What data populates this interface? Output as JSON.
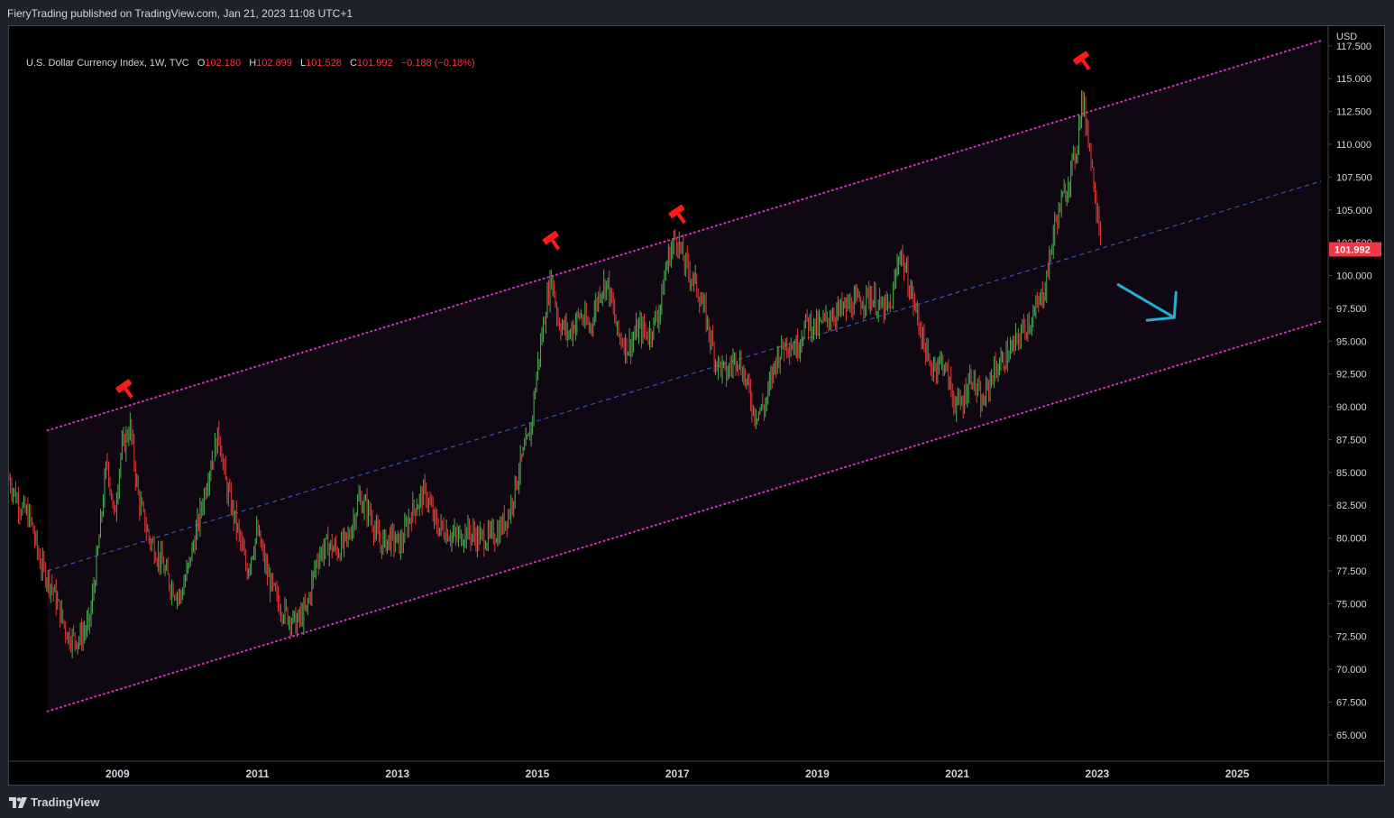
{
  "header": {
    "publish_text": "FieryTrading published on TradingView.com, Jan 21, 2023 11:08 UTC+1"
  },
  "legend": {
    "symbol": "U.S. Dollar Currency Index, 1W, TVC",
    "o_label": "O",
    "o_value": "102.180",
    "h_label": "H",
    "h_value": "102.899",
    "l_label": "L",
    "l_value": "101.528",
    "c_label": "C",
    "c_value": "101.992",
    "change": "−0.188 (−0.18%)"
  },
  "price_axis": {
    "currency": "USD",
    "last_price": "101.992",
    "hidden_tick": "102.500"
  },
  "footer": {
    "logo_text": "TradingView"
  },
  "colors": {
    "background": "#000000",
    "channel_fill": "#0f0812",
    "channel_line": "#d633c7",
    "midline": "#3a5fd6",
    "candle_up": "#4caf50",
    "candle_down": "#e53935",
    "arrow": "#22b0d8",
    "hammer": "#ff1a1a",
    "last_price_bg": "#f23645"
  },
  "icons": [
    "hammer-icon",
    "down-arrow-icon",
    "tradingview-logo-icon"
  ],
  "chart_data": {
    "type": "candlestick",
    "title": "U.S. Dollar Currency Index, 1W, TVC",
    "xlabel": "",
    "ylabel": "USD",
    "ylim": [
      63.0,
      119.0
    ],
    "xlim": [
      2007.45,
      2026.3
    ],
    "x_ticks": [
      "2009",
      "2011",
      "2013",
      "2015",
      "2017",
      "2019",
      "2021",
      "2023",
      "2025"
    ],
    "y_ticks": [
      "65.000",
      "67.500",
      "70.000",
      "72.500",
      "75.000",
      "77.500",
      "80.000",
      "82.500",
      "85.000",
      "87.500",
      "90.000",
      "92.500",
      "95.000",
      "97.500",
      "100.000",
      "105.000",
      "107.500",
      "110.000",
      "112.500",
      "115.000",
      "117.500"
    ],
    "price_path": [
      [
        2007.45,
        84.5
      ],
      [
        2007.6,
        82.5
      ],
      [
        2007.75,
        81.5
      ],
      [
        2007.9,
        78.0
      ],
      [
        2008.05,
        76.5
      ],
      [
        2008.2,
        74.0
      ],
      [
        2008.3,
        72.5
      ],
      [
        2008.45,
        72.3
      ],
      [
        2008.6,
        73.5
      ],
      [
        2008.72,
        79.0
      ],
      [
        2008.85,
        86.0
      ],
      [
        2008.95,
        81.5
      ],
      [
        2009.05,
        86.5
      ],
      [
        2009.18,
        88.5
      ],
      [
        2009.3,
        83.0
      ],
      [
        2009.45,
        80.0
      ],
      [
        2009.6,
        78.5
      ],
      [
        2009.75,
        76.5
      ],
      [
        2009.9,
        75.5
      ],
      [
        2010.0,
        77.5
      ],
      [
        2010.15,
        81.0
      ],
      [
        2010.3,
        85.0
      ],
      [
        2010.45,
        88.0
      ],
      [
        2010.55,
        84.0
      ],
      [
        2010.7,
        81.0
      ],
      [
        2010.85,
        77.5
      ],
      [
        2011.0,
        80.5
      ],
      [
        2011.15,
        77.0
      ],
      [
        2011.3,
        75.0
      ],
      [
        2011.45,
        74.0
      ],
      [
        2011.55,
        73.5
      ],
      [
        2011.7,
        74.5
      ],
      [
        2011.85,
        78.5
      ],
      [
        2012.0,
        79.5
      ],
      [
        2012.15,
        79.0
      ],
      [
        2012.3,
        80.0
      ],
      [
        2012.45,
        83.0
      ],
      [
        2012.6,
        82.0
      ],
      [
        2012.75,
        79.5
      ],
      [
        2012.9,
        80.0
      ],
      [
        2013.05,
        79.5
      ],
      [
        2013.2,
        82.0
      ],
      [
        2013.4,
        83.5
      ],
      [
        2013.55,
        81.0
      ],
      [
        2013.7,
        80.5
      ],
      [
        2013.85,
        80.0
      ],
      [
        2014.0,
        80.5
      ],
      [
        2014.15,
        80.0
      ],
      [
        2014.3,
        80.0
      ],
      [
        2014.45,
        80.5
      ],
      [
        2014.6,
        82.0
      ],
      [
        2014.75,
        85.5
      ],
      [
        2014.9,
        88.0
      ],
      [
        2015.0,
        93.0
      ],
      [
        2015.12,
        97.5
      ],
      [
        2015.2,
        100.0
      ],
      [
        2015.3,
        96.5
      ],
      [
        2015.45,
        95.5
      ],
      [
        2015.6,
        97.0
      ],
      [
        2015.75,
        96.0
      ],
      [
        2015.9,
        99.0
      ],
      [
        2016.0,
        99.5
      ],
      [
        2016.15,
        95.5
      ],
      [
        2016.3,
        94.5
      ],
      [
        2016.45,
        96.0
      ],
      [
        2016.6,
        95.5
      ],
      [
        2016.75,
        97.5
      ],
      [
        2016.85,
        101.0
      ],
      [
        2016.98,
        103.0
      ],
      [
        2017.1,
        101.0
      ],
      [
        2017.25,
        99.5
      ],
      [
        2017.4,
        97.0
      ],
      [
        2017.55,
        93.5
      ],
      [
        2017.7,
        92.5
      ],
      [
        2017.85,
        94.0
      ],
      [
        2017.98,
        92.0
      ],
      [
        2018.1,
        89.5
      ],
      [
        2018.25,
        90.0
      ],
      [
        2018.4,
        93.5
      ],
      [
        2018.55,
        95.0
      ],
      [
        2018.7,
        94.5
      ],
      [
        2018.85,
        96.5
      ],
      [
        2019.0,
        96.0
      ],
      [
        2019.2,
        97.0
      ],
      [
        2019.4,
        97.5
      ],
      [
        2019.6,
        98.0
      ],
      [
        2019.75,
        98.5
      ],
      [
        2019.9,
        97.5
      ],
      [
        2020.05,
        97.5
      ],
      [
        2020.18,
        102.0
      ],
      [
        2020.3,
        99.5
      ],
      [
        2020.45,
        96.5
      ],
      [
        2020.6,
        93.0
      ],
      [
        2020.8,
        93.5
      ],
      [
        2020.95,
        90.5
      ],
      [
        2021.05,
        90.0
      ],
      [
        2021.2,
        92.5
      ],
      [
        2021.35,
        90.0
      ],
      [
        2021.5,
        92.5
      ],
      [
        2021.65,
        93.5
      ],
      [
        2021.8,
        94.5
      ],
      [
        2021.95,
        96.0
      ],
      [
        2022.1,
        97.0
      ],
      [
        2022.25,
        99.0
      ],
      [
        2022.4,
        104.0
      ],
      [
        2022.55,
        106.5
      ],
      [
        2022.7,
        109.5
      ],
      [
        2022.78,
        113.5
      ],
      [
        2022.88,
        110.5
      ],
      [
        2022.95,
        107.0
      ],
      [
        2023.02,
        104.5
      ],
      [
        2023.06,
        102.0
      ]
    ],
    "channel": {
      "upper": [
        [
          2008.0,
          88.2
        ],
        [
          2026.2,
          117.9
        ]
      ],
      "middle": [
        [
          2008.0,
          77.5
        ],
        [
          2026.2,
          107.2
        ]
      ],
      "lower": [
        [
          2008.0,
          66.8
        ],
        [
          2026.2,
          96.5
        ]
      ],
      "fill_x_range": [
        2008.0,
        2026.2
      ]
    },
    "annotations": {
      "hammers": [
        [
          2009.1,
          91.5
        ],
        [
          2015.2,
          102.8
        ],
        [
          2017.0,
          104.8
        ],
        [
          2022.78,
          116.5
        ]
      ],
      "arrow": {
        "from": [
          2023.3,
          99.3
        ],
        "to": [
          2024.1,
          96.8
        ]
      }
    },
    "last_price": 101.992
  }
}
